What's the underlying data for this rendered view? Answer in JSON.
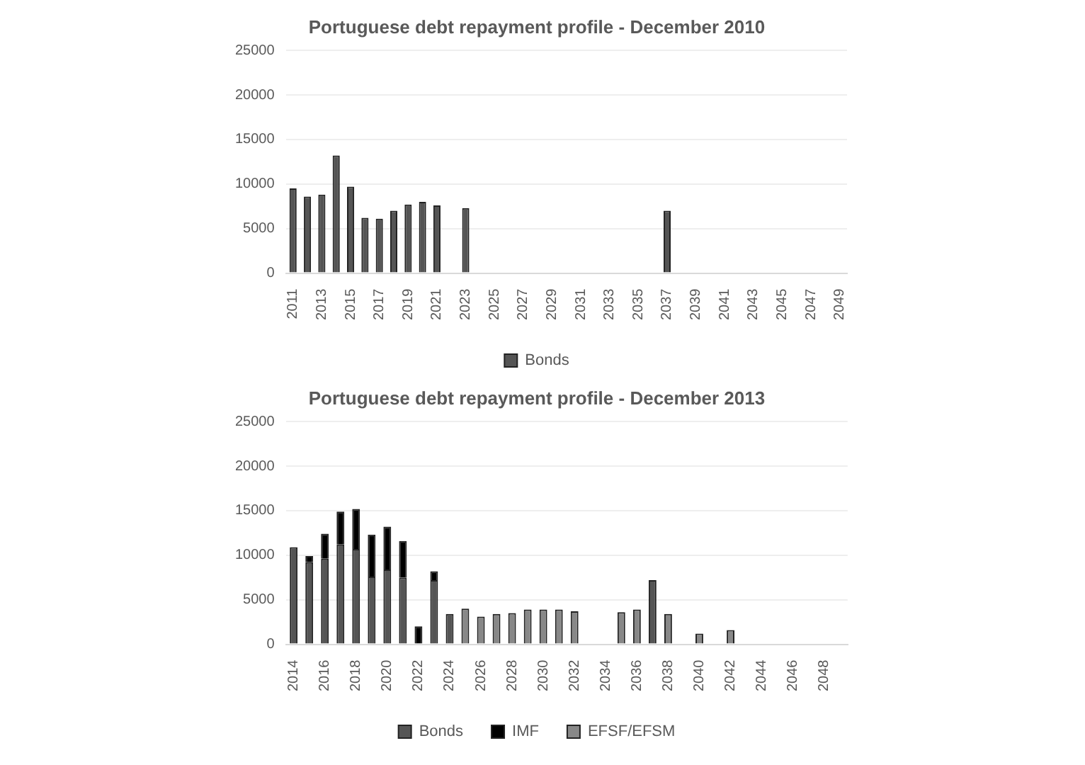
{
  "chart_data": [
    {
      "type": "bar",
      "title": "Portuguese debt repayment profile - December 2010",
      "categories": [
        "2011",
        null,
        "2013",
        null,
        "2015",
        null,
        "2017",
        null,
        "2019",
        null,
        "2021",
        null,
        "2023",
        null,
        "2025",
        null,
        "2027",
        null,
        "2029",
        null,
        "2031",
        null,
        "2033",
        null,
        "2035",
        null,
        "2037",
        null,
        "2039",
        null,
        "2041",
        null,
        "2043",
        null,
        "2045",
        null,
        "2047",
        null,
        "2049"
      ],
      "series": [
        {
          "name": "Bonds",
          "color": "#555555",
          "values": [
            9500,
            8600,
            8800,
            13200,
            9700,
            6200,
            6100,
            7000,
            7700,
            8000,
            7600,
            null,
            7300,
            null,
            null,
            null,
            null,
            null,
            null,
            null,
            null,
            null,
            null,
            null,
            null,
            null,
            7000,
            null,
            null,
            null,
            null,
            null,
            null,
            null,
            null,
            null,
            null,
            null,
            null
          ]
        }
      ],
      "ylim": [
        0,
        25000
      ],
      "yticks": [
        0,
        5000,
        10000,
        15000,
        20000,
        25000
      ],
      "grid": "y",
      "legend": "bottom"
    },
    {
      "type": "bar",
      "title": "Portuguese debt repayment profile - December 2013",
      "stacked": true,
      "categories": [
        "2014",
        null,
        "2016",
        null,
        "2018",
        null,
        "2020",
        null,
        "2022",
        null,
        "2024",
        null,
        "2026",
        null,
        "2028",
        null,
        "2030",
        null,
        "2032",
        null,
        "2034",
        null,
        "2036",
        null,
        "2038",
        null,
        "2040",
        null,
        "2042",
        null,
        "2044",
        null,
        "2046",
        null,
        "2048",
        null
      ],
      "series": [
        {
          "name": "Bonds",
          "color": "#555555",
          "values": [
            10900,
            9200,
            9600,
            11200,
            10700,
            7600,
            8400,
            7500,
            null,
            7200,
            3400,
            null,
            null,
            null,
            null,
            null,
            null,
            null,
            null,
            null,
            null,
            null,
            null,
            7200,
            null,
            null,
            null,
            null,
            null,
            null,
            null,
            null,
            null,
            null,
            null,
            null
          ]
        },
        {
          "name": "IMF",
          "color": "#000000",
          "values": [
            null,
            700,
            2800,
            3700,
            4500,
            4700,
            4800,
            4100,
            2000,
            1000,
            null,
            null,
            null,
            null,
            null,
            null,
            null,
            null,
            null,
            null,
            null,
            null,
            null,
            null,
            null,
            null,
            null,
            null,
            null,
            null,
            null,
            null,
            null,
            null,
            null,
            null
          ]
        },
        {
          "name": "EFSF/EFSM",
          "color": "#888888",
          "values": [
            null,
            null,
            null,
            null,
            null,
            null,
            null,
            null,
            null,
            null,
            null,
            4000,
            3100,
            3400,
            3500,
            3900,
            3900,
            3900,
            3700,
            null,
            null,
            3600,
            3900,
            null,
            3400,
            null,
            1200,
            null,
            1600,
            null,
            null,
            null,
            null,
            null,
            null,
            null
          ]
        }
      ],
      "ylim": [
        0,
        25000
      ],
      "yticks": [
        0,
        5000,
        10000,
        15000,
        20000,
        25000
      ],
      "grid": "y",
      "legend": "bottom"
    }
  ]
}
